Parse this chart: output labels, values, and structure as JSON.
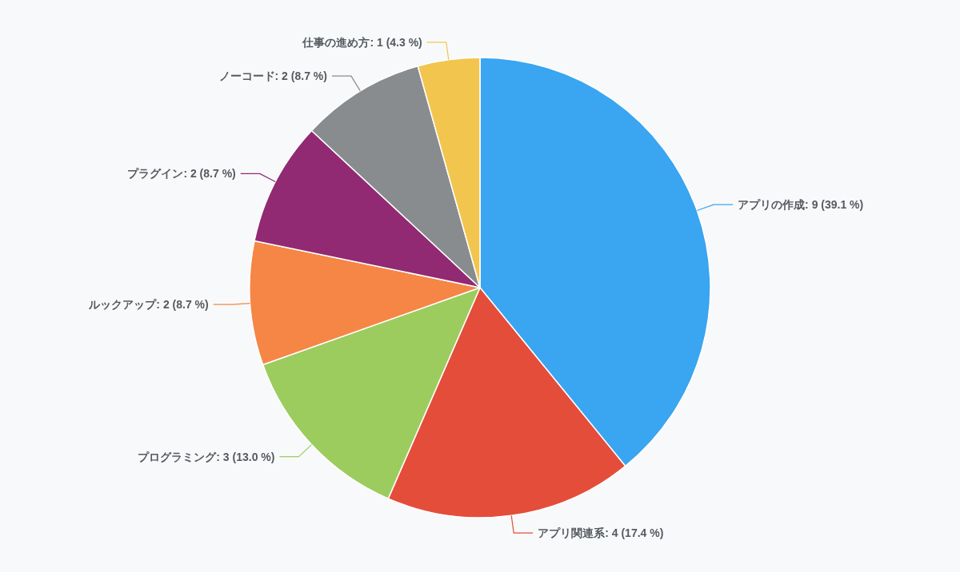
{
  "chart_data": {
    "type": "pie",
    "categories": [
      "アプリの作成",
      "アプリ関連系",
      "プログラミング",
      "ルックアップ",
      "プラグイン",
      "ノーコード",
      "仕事の進め方"
    ],
    "values": [
      9,
      4,
      3,
      2,
      2,
      2,
      1
    ],
    "value_labels": [
      "9 (39.1 %)",
      "4 (17.4 %)",
      "3 (13.0 %)",
      "2 (8.7 %)",
      "2 (8.7 %)",
      "2 (8.7 %)",
      "1 (4.3 %)"
    ],
    "colors": [
      "#3aa5f0",
      "#e44d3a",
      "#9ccc5e",
      "#f58646",
      "#912a72",
      "#888c8f",
      "#f2c54f"
    ]
  }
}
